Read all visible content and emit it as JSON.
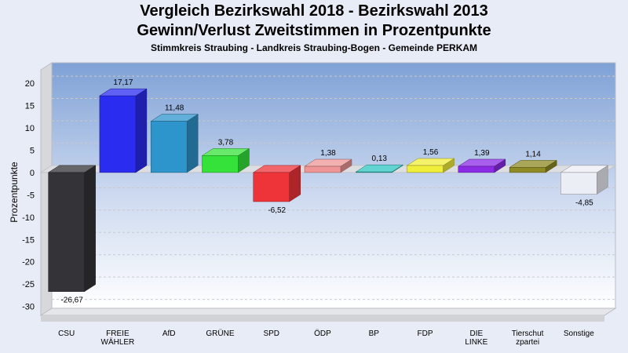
{
  "title": "Vergleich Bezirkswahl 2018 - Bezirkswahl 2013",
  "subtitle": "Gewinn/Verlust Zweitstimmen in Prozentpunkte",
  "subsubtitle": "Stimmkreis Straubing - Landkreis Straubing-Bogen - Gemeinde PERKAM",
  "chart_data": {
    "type": "bar",
    "title": "Vergleich Bezirkswahl 2018 - Bezirkswahl 2013",
    "subtitle": "Gewinn/Verlust Zweitstimmen in Prozentpunkte",
    "xlabel": "",
    "ylabel": "Prozentpunkte",
    "ylim": [
      -32,
      23
    ],
    "yticks": [
      20,
      15,
      10,
      5,
      0,
      -5,
      -10,
      -15,
      -20,
      -25,
      -30
    ],
    "grid": true,
    "categories": [
      [
        "CSU"
      ],
      [
        "FREIE",
        "WÄHLER"
      ],
      [
        "AfD"
      ],
      [
        "GRÜNE"
      ],
      [
        "SPD"
      ],
      [
        "ÖDP"
      ],
      [
        "BP"
      ],
      [
        "FDP"
      ],
      [
        "DIE",
        "LINKE"
      ],
      [
        "Tierschut",
        "zpartei"
      ],
      [
        "Sonstige"
      ]
    ],
    "values": [
      -26.67,
      17.17,
      11.48,
      3.78,
      -6.52,
      1.38,
      0.13,
      1.56,
      1.39,
      1.14,
      -4.85
    ],
    "value_labels": [
      "-26,67",
      "17,17",
      "11,48",
      "3,78",
      "-6,52",
      "1,38",
      "0,13",
      "1,56",
      "1,39",
      "1,14",
      "-4,85"
    ],
    "colors": [
      "#333338",
      "#2a2cf0",
      "#2e95cc",
      "#35e23a",
      "#ee3339",
      "#ef9595",
      "#2ec6c3",
      "#f0ee38",
      "#8b2be6",
      "#8e8a24",
      "#eceef6"
    ]
  }
}
